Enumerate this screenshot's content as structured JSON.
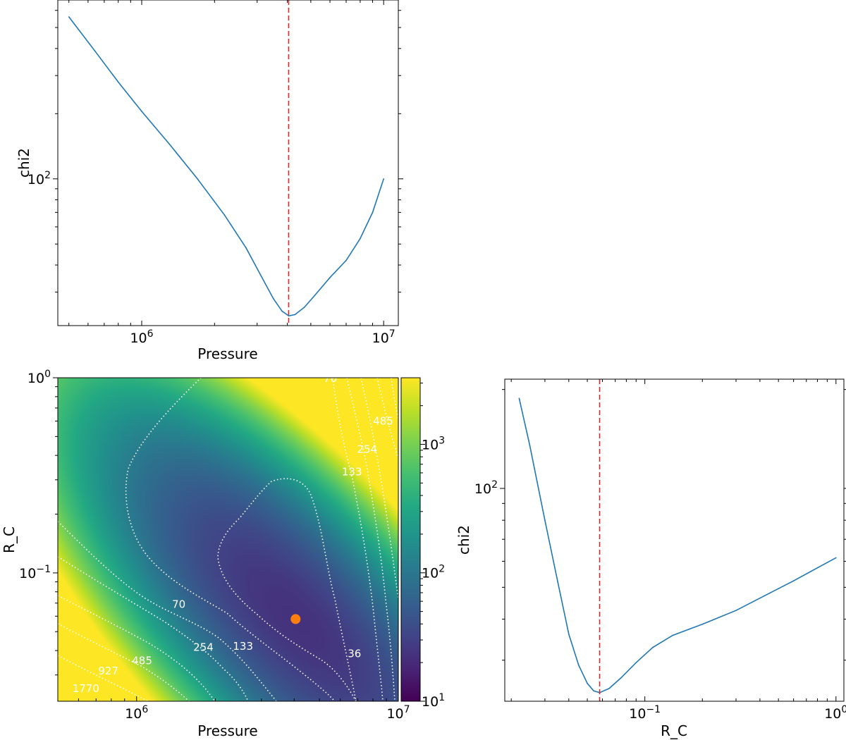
{
  "chart_data": [
    {
      "type": "line",
      "panel": "top-left",
      "xlabel": "Pressure",
      "ylabel": "chi2",
      "xscale": "log",
      "yscale": "log",
      "xlim": [
        450000,
        11500000
      ],
      "ylim": [
        21,
        670
      ],
      "xticks": [
        {
          "value": 1000000,
          "label": "10^6"
        },
        {
          "value": 10000000,
          "label": "10^7"
        }
      ],
      "yticks": [
        {
          "value": 100,
          "label": "10^2"
        }
      ],
      "best_fit_x": 4050000,
      "series": [
        {
          "x": [
            500000,
            640000,
            800000,
            1000000,
            1300000,
            1700000,
            2200000,
            2700000,
            3100000,
            3500000,
            3800000,
            4050000,
            4300000,
            4700000,
            5200000,
            6000000,
            7000000,
            8000000,
            9000000,
            10000000
          ],
          "y": [
            560,
            390,
            280,
            205,
            145,
            100,
            68,
            48,
            36,
            28,
            24.5,
            23.3,
            23.6,
            25.5,
            29,
            35,
            42,
            53,
            70,
            100
          ]
        }
      ]
    },
    {
      "type": "heatmap",
      "panel": "bottom-left",
      "xlabel": "Pressure",
      "ylabel": "R_C",
      "xscale": "log",
      "yscale": "log",
      "xlim": [
        500000,
        10000000
      ],
      "ylim": [
        0.022,
        1.0
      ],
      "xticks": [
        {
          "value": 1000000,
          "label": "10^6"
        },
        {
          "value": 10000000,
          "label": "10^7"
        }
      ],
      "yticks": [
        {
          "value": 0.1,
          "label": "10^-1"
        },
        {
          "value": 1,
          "label": "10^0"
        }
      ],
      "colormap": "viridis",
      "color_scale": "log",
      "colorbar_range": [
        10,
        3300
      ],
      "colorbar_ticks": [
        {
          "value": 10,
          "label": "10^1"
        },
        {
          "value": 100,
          "label": "10^2"
        },
        {
          "value": 1000,
          "label": "10^3"
        }
      ],
      "contour_levels": [
        36,
        70,
        133,
        254,
        485,
        927,
        1770
      ],
      "contour_labels": [
        {
          "text": "70",
          "x": 1450000,
          "y": 0.069
        },
        {
          "text": "254",
          "x": 1800000,
          "y": 0.0415
        },
        {
          "text": "133",
          "x": 2550000,
          "y": 0.042
        },
        {
          "text": "485",
          "x": 1050000,
          "y": 0.0355
        },
        {
          "text": "927",
          "x": 780000,
          "y": 0.0315
        },
        {
          "text": "1770",
          "x": 640000,
          "y": 0.0255
        },
        {
          "text": "36",
          "x": 6800000,
          "y": 0.0385
        },
        {
          "text": "133",
          "x": 6650000,
          "y": 0.33
        },
        {
          "text": "254",
          "x": 7600000,
          "y": 0.43
        },
        {
          "text": "485",
          "x": 8750000,
          "y": 0.6
        },
        {
          "text": "70",
          "x": 5500000,
          "y": 0.99
        }
      ],
      "best_fit_point": {
        "x": 4050000,
        "y": 0.058,
        "color": "#ff7f0e"
      }
    },
    {
      "type": "line",
      "panel": "bottom-right",
      "xlabel": "R_C",
      "ylabel": "chi2",
      "xscale": "log",
      "yscale": "log",
      "xlim": [
        0.0185,
        1.1
      ],
      "ylim": [
        22.5,
        215
      ],
      "xticks": [
        {
          "value": 0.1,
          "label": "10^-1"
        },
        {
          "value": 1,
          "label": "10^0"
        }
      ],
      "yticks": [
        {
          "value": 100,
          "label": "10^2"
        }
      ],
      "best_fit_x": 0.058,
      "series": [
        {
          "x": [
            0.022,
            0.025,
            0.03,
            0.035,
            0.04,
            0.045,
            0.05,
            0.054,
            0.058,
            0.065,
            0.075,
            0.09,
            0.11,
            0.14,
            0.2,
            0.3,
            0.45,
            0.6,
            0.8,
            1.0
          ],
          "y": [
            188,
            135,
            80,
            52,
            36,
            29,
            25.5,
            24.2,
            23.9,
            24.6,
            26.5,
            29.5,
            32.8,
            35.7,
            38.6,
            42.5,
            48,
            52.3,
            57.3,
            61.5
          ]
        }
      ]
    }
  ]
}
